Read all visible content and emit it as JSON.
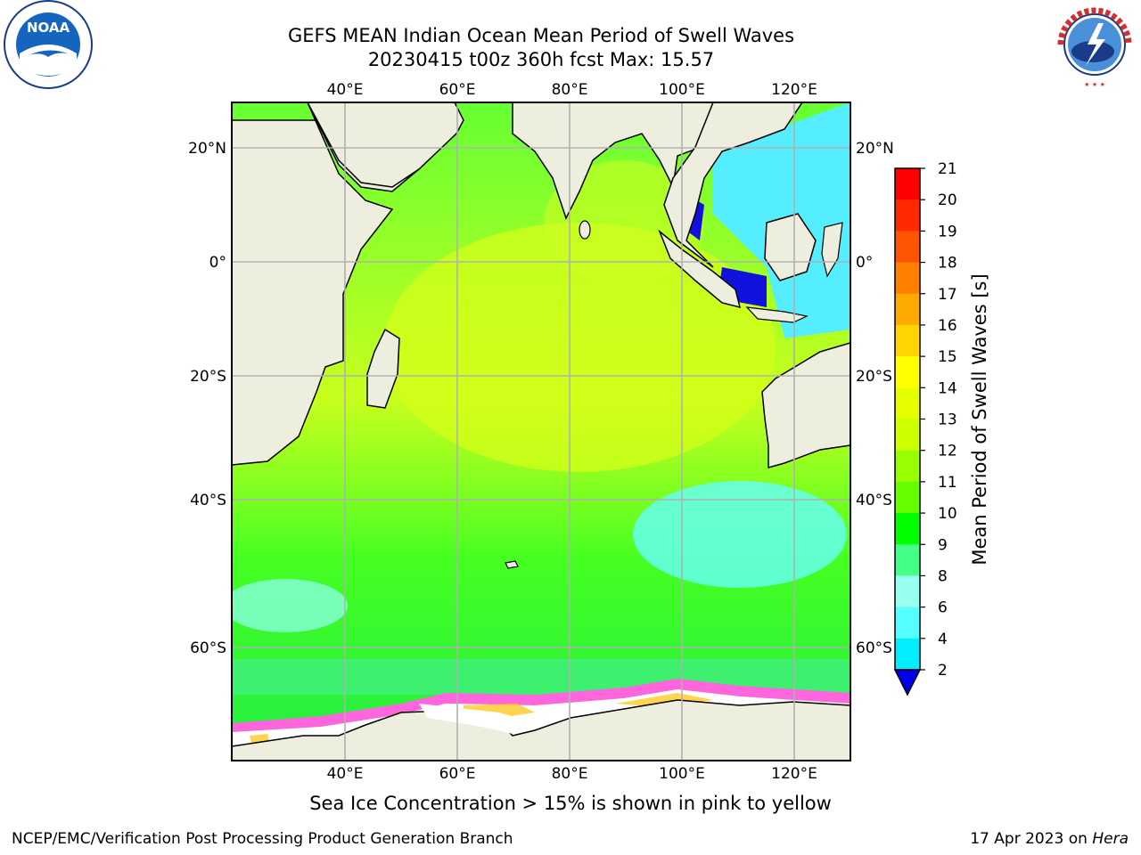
{
  "title": {
    "line1": "GEFS MEAN Indian Ocean Mean Period of Swell Waves",
    "line2": "20230415 t00z 360h fcst   Max: 15.57"
  },
  "caption": "Sea Ice Concentration > 15% is shown in pink to yellow",
  "footer": {
    "left": "NCEP/EMC/Verification Post Processing Product Generation Branch",
    "right_date": "17 Apr 2023 on",
    "right_machine": "Hera"
  },
  "logos": {
    "noaa_text": "NOAA",
    "nws_text": "NATIONAL WEATHER SERVICE"
  },
  "map": {
    "lon_ticks": [
      "40°E",
      "60°E",
      "80°E",
      "100°E",
      "120°E"
    ],
    "lat_ticks": [
      "20°N",
      "0°",
      "20°S",
      "40°S",
      "60°S"
    ],
    "ocean_color": "#33e633",
    "land_color": "#eeeedf",
    "sea_ice_color": "#ffffff",
    "grid_color": "#b0b0b0"
  },
  "colorbar": {
    "label": "Mean Period of Swell Waves [s]",
    "ticks": [
      "21",
      "20",
      "19",
      "18",
      "17",
      "16",
      "15",
      "14",
      "13",
      "12",
      "11",
      "10",
      "9",
      "8",
      "6",
      "4",
      "2"
    ],
    "colors": [
      "#ff0000",
      "#ff2a00",
      "#ff5500",
      "#ff8000",
      "#ffaa00",
      "#ffd400",
      "#ffff00",
      "#e6ff00",
      "#ccff00",
      "#99ff00",
      "#66ff00",
      "#00ff00",
      "#44ff88",
      "#99ffee",
      "#55ffff",
      "#00eeff",
      "#0099ff",
      "#0055ff"
    ],
    "extend_color": "#0000ee"
  }
}
